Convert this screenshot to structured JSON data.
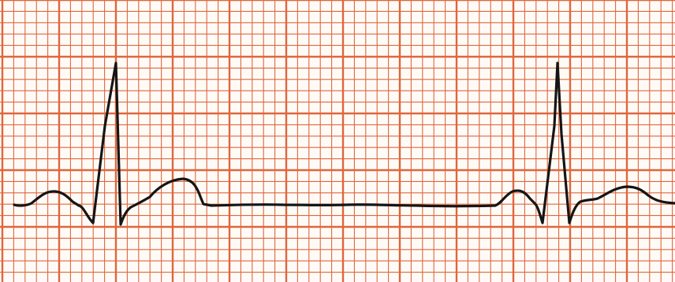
{
  "ecg_strip": {
    "paper_color": "#fefbf7",
    "grid_color": "#e0663d",
    "trace_color": "#151515",
    "grid_small_boxes_per_large": 5,
    "trace_shape": "two complete cardiac cycles (P wave, QRS complex, T wave) separated by a long flat isoelectric pause, with the start of a third P wave at the right edge"
  }
}
